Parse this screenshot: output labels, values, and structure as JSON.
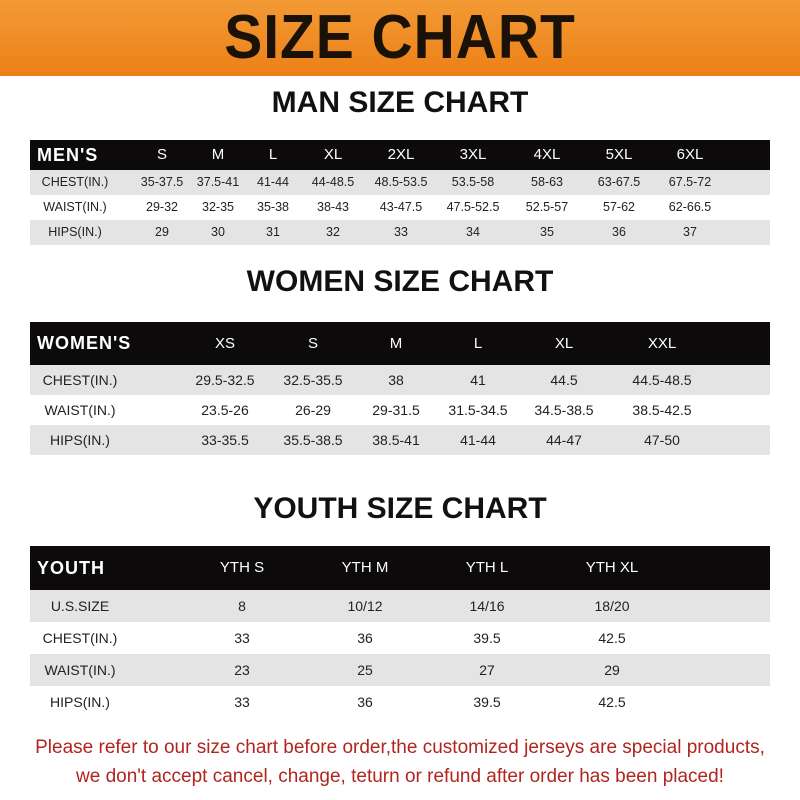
{
  "banner_title": "SIZE CHART",
  "men": {
    "title": "MAN SIZE CHART",
    "header": [
      "MEN'S",
      "S",
      "M",
      "L",
      "XL",
      "2XL",
      "3XL",
      "4XL",
      "5XL",
      "6XL"
    ],
    "rows": [
      [
        "CHEST(IN.)",
        "35-37.5",
        "37.5-41",
        "41-44",
        "44-48.5",
        "48.5-53.5",
        "53.5-58",
        "58-63",
        "63-67.5",
        "67.5-72"
      ],
      [
        "WAIST(IN.)",
        "29-32",
        "32-35",
        "35-38",
        "38-43",
        "43-47.5",
        "47.5-52.5",
        "52.5-57",
        "57-62",
        "62-66.5"
      ],
      [
        "HIPS(IN.)",
        "29",
        "30",
        "31",
        "32",
        "33",
        "34",
        "35",
        "36",
        "37"
      ]
    ]
  },
  "women": {
    "title": "WOMEN SIZE CHART",
    "header": [
      "WOMEN'S",
      "XS",
      "S",
      "M",
      "L",
      "XL",
      "XXL"
    ],
    "rows": [
      [
        "CHEST(IN.)",
        "29.5-32.5",
        "32.5-35.5",
        "38",
        "41",
        "44.5",
        "44.5-48.5"
      ],
      [
        "WAIST(IN.)",
        "23.5-26",
        "26-29",
        "29-31.5",
        "31.5-34.5",
        "34.5-38.5",
        "38.5-42.5"
      ],
      [
        "HIPS(IN.)",
        "33-35.5",
        "35.5-38.5",
        "38.5-41",
        "41-44",
        "44-47",
        "47-50"
      ]
    ]
  },
  "youth": {
    "title": "YOUTH SIZE CHART",
    "header": [
      "YOUTH",
      "YTH S",
      "YTH M",
      "YTH L",
      "YTH XL"
    ],
    "rows": [
      [
        "U.S.SIZE",
        "8",
        "10/12",
        "14/16",
        "18/20"
      ],
      [
        "CHEST(IN.)",
        "33",
        "36",
        "39.5",
        "42.5"
      ],
      [
        "WAIST(IN.)",
        "23",
        "25",
        "27",
        "29"
      ],
      [
        "HIPS(IN.)",
        "33",
        "36",
        "39.5",
        "42.5"
      ]
    ]
  },
  "notice": {
    "line1": "Please refer to our size chart before order,the customized jerseys are special products,",
    "line2": "we don't accept cancel, change, teturn or refund after order has been placed!"
  },
  "colors": {
    "banner": "#ec8017",
    "header_row": "#0c0a0a",
    "stripe": "#e4e4e4",
    "notice": "#b1251f"
  }
}
